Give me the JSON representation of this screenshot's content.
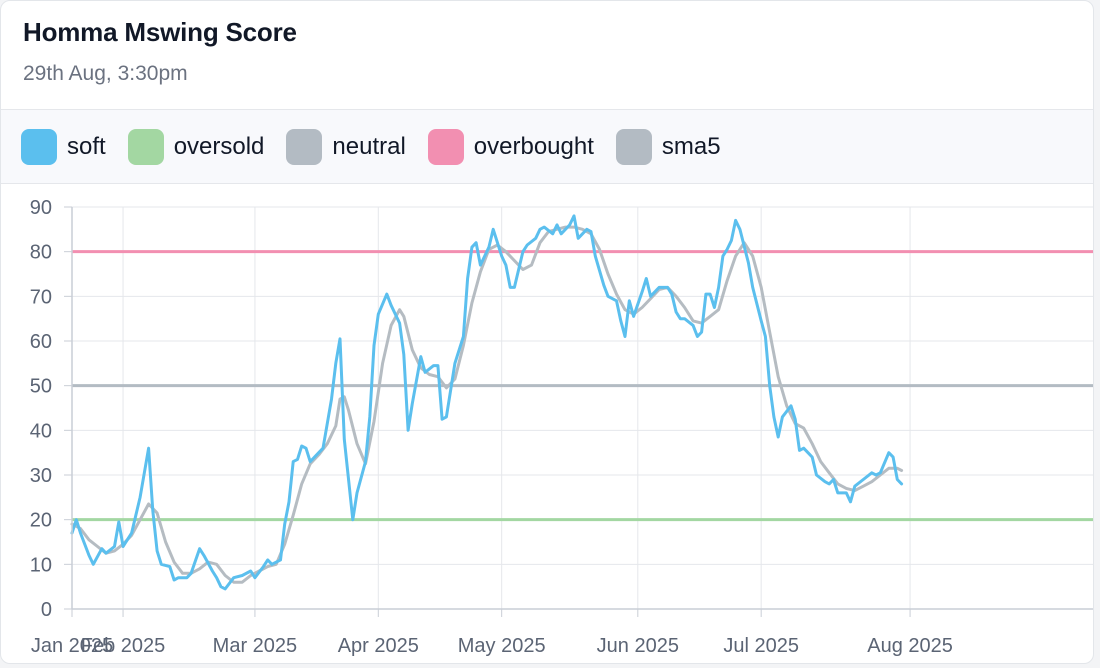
{
  "card": {
    "title": "Homma Mswing Score",
    "subtitle": "29th Aug, 3:30pm"
  },
  "chart_data": {
    "type": "line",
    "title": "Homma Mswing Score",
    "subtitle": "29th Aug, 3:30pm",
    "xlabel": "",
    "ylabel": "",
    "ylim": [
      0,
      90
    ],
    "yticks": [
      0,
      10,
      20,
      30,
      40,
      50,
      60,
      70,
      80,
      90
    ],
    "xlim": [
      "2025-01-01",
      "2025-08-29"
    ],
    "xticks": [
      {
        "date": "2025-01-01",
        "label": "Jan 2025"
      },
      {
        "date": "2025-01-13",
        "label": "Feb 2025"
      },
      {
        "date": "2025-02-13",
        "label": "Mar 2025"
      },
      {
        "date": "2025-03-14",
        "label": "Apr 2025"
      },
      {
        "date": "2025-04-12",
        "label": "May 2025"
      },
      {
        "date": "2025-05-14",
        "label": "Jun 2025"
      },
      {
        "date": "2025-06-12",
        "label": "Jul 2025"
      },
      {
        "date": "2025-07-17",
        "label": "Aug 2025"
      }
    ],
    "grid": true,
    "legend_position": "top",
    "series": [
      {
        "name": "soft",
        "color": "#5bbfee",
        "points": [
          [
            "2025-01-01",
            17.0
          ],
          [
            "2025-01-02",
            20.0
          ],
          [
            "2025-01-03",
            17.0
          ],
          [
            "2025-01-05",
            12.0
          ],
          [
            "2025-01-06",
            10.0
          ],
          [
            "2025-01-08",
            13.5
          ],
          [
            "2025-01-09",
            12.5
          ],
          [
            "2025-01-11",
            14.0
          ],
          [
            "2025-01-12",
            19.5
          ],
          [
            "2025-01-13",
            14.0
          ],
          [
            "2025-01-14",
            15.5
          ],
          [
            "2025-01-15",
            17.0
          ],
          [
            "2025-01-17",
            25.0
          ],
          [
            "2025-01-19",
            36.0
          ],
          [
            "2025-01-20",
            22.0
          ],
          [
            "2025-01-21",
            13.0
          ],
          [
            "2025-01-22",
            10.0
          ],
          [
            "2025-01-24",
            9.5
          ],
          [
            "2025-01-25",
            6.5
          ],
          [
            "2025-01-26",
            7.0
          ],
          [
            "2025-01-28",
            7.0
          ],
          [
            "2025-01-29",
            8.0
          ],
          [
            "2025-01-31",
            13.5
          ],
          [
            "2025-02-01",
            12.0
          ],
          [
            "2025-02-03",
            8.5
          ],
          [
            "2025-02-04",
            7.0
          ],
          [
            "2025-02-05",
            5.0
          ],
          [
            "2025-02-06",
            4.5
          ],
          [
            "2025-02-08",
            7.0
          ],
          [
            "2025-02-10",
            7.5
          ],
          [
            "2025-02-12",
            8.5
          ],
          [
            "2025-02-13",
            7.0
          ],
          [
            "2025-02-15",
            9.5
          ],
          [
            "2025-02-16",
            11.0
          ],
          [
            "2025-02-17",
            10.0
          ],
          [
            "2025-02-19",
            11.0
          ],
          [
            "2025-02-20",
            19.0
          ],
          [
            "2025-02-21",
            24.0
          ],
          [
            "2025-02-22",
            33.0
          ],
          [
            "2025-02-23",
            33.5
          ],
          [
            "2025-02-24",
            36.5
          ],
          [
            "2025-02-25",
            36.0
          ],
          [
            "2025-02-26",
            33.0
          ],
          [
            "2025-02-28",
            35.0
          ],
          [
            "2025-03-01",
            36.0
          ],
          [
            "2025-03-03",
            47.0
          ],
          [
            "2025-03-04",
            55.0
          ],
          [
            "2025-03-05",
            60.5
          ],
          [
            "2025-03-06",
            38.0
          ],
          [
            "2025-03-08",
            20.0
          ],
          [
            "2025-03-09",
            26.0
          ],
          [
            "2025-03-11",
            33.0
          ],
          [
            "2025-03-12",
            43.0
          ],
          [
            "2025-03-13",
            59.0
          ],
          [
            "2025-03-14",
            66.0
          ],
          [
            "2025-03-16",
            70.5
          ],
          [
            "2025-03-17",
            68.0
          ],
          [
            "2025-03-19",
            64.0
          ],
          [
            "2025-03-20",
            57.0
          ],
          [
            "2025-03-21",
            40.0
          ],
          [
            "2025-03-22",
            46.0
          ],
          [
            "2025-03-24",
            56.5
          ],
          [
            "2025-03-25",
            53.0
          ],
          [
            "2025-03-27",
            54.5
          ],
          [
            "2025-03-28",
            54.5
          ],
          [
            "2025-03-29",
            42.5
          ],
          [
            "2025-03-30",
            43.0
          ],
          [
            "2025-04-01",
            55.0
          ],
          [
            "2025-04-03",
            61.0
          ],
          [
            "2025-04-04",
            74.0
          ],
          [
            "2025-04-05",
            81.0
          ],
          [
            "2025-04-06",
            82.0
          ],
          [
            "2025-04-07",
            77.0
          ],
          [
            "2025-04-09",
            81.0
          ],
          [
            "2025-04-10",
            85.0
          ],
          [
            "2025-04-12",
            79.0
          ],
          [
            "2025-04-13",
            77.0
          ],
          [
            "2025-04-14",
            72.0
          ],
          [
            "2025-04-15",
            72.0
          ],
          [
            "2025-04-17",
            80.0
          ],
          [
            "2025-04-18",
            81.5
          ],
          [
            "2025-04-20",
            83.0
          ],
          [
            "2025-04-21",
            85.0
          ],
          [
            "2025-04-22",
            85.5
          ],
          [
            "2025-04-24",
            84.0
          ],
          [
            "2025-04-25",
            86.0
          ],
          [
            "2025-04-26",
            84.0
          ],
          [
            "2025-04-28",
            86.0
          ],
          [
            "2025-04-29",
            88.0
          ],
          [
            "2025-04-30",
            83.0
          ],
          [
            "2025-05-02",
            85.0
          ],
          [
            "2025-05-03",
            84.5
          ],
          [
            "2025-05-04",
            79.0
          ],
          [
            "2025-05-06",
            72.5
          ],
          [
            "2025-05-07",
            70.0
          ],
          [
            "2025-05-09",
            69.0
          ],
          [
            "2025-05-10",
            64.5
          ],
          [
            "2025-05-11",
            61.0
          ],
          [
            "2025-05-12",
            69.0
          ],
          [
            "2025-05-13",
            65.5
          ],
          [
            "2025-05-15",
            71.0
          ],
          [
            "2025-05-16",
            74.0
          ],
          [
            "2025-05-17",
            70.0
          ],
          [
            "2025-05-19",
            72.0
          ],
          [
            "2025-05-21",
            72.0
          ],
          [
            "2025-05-22",
            70.5
          ],
          [
            "2025-05-23",
            66.5
          ],
          [
            "2025-05-24",
            65.0
          ],
          [
            "2025-05-25",
            65.0
          ],
          [
            "2025-05-27",
            63.5
          ],
          [
            "2025-05-28",
            61.0
          ],
          [
            "2025-05-29",
            62.0
          ],
          [
            "2025-05-30",
            70.5
          ],
          [
            "2025-05-31",
            70.5
          ],
          [
            "2025-06-01",
            67.5
          ],
          [
            "2025-06-02",
            72.0
          ],
          [
            "2025-06-03",
            79.0
          ],
          [
            "2025-06-04",
            80.5
          ],
          [
            "2025-06-05",
            82.5
          ],
          [
            "2025-06-06",
            87.0
          ],
          [
            "2025-06-07",
            85.0
          ],
          [
            "2025-06-09",
            77.5
          ],
          [
            "2025-06-10",
            72.0
          ],
          [
            "2025-06-12",
            64.5
          ],
          [
            "2025-06-13",
            61.0
          ],
          [
            "2025-06-14",
            50.0
          ],
          [
            "2025-06-15",
            43.0
          ],
          [
            "2025-06-16",
            38.5
          ],
          [
            "2025-06-17",
            43.0
          ],
          [
            "2025-06-19",
            45.5
          ],
          [
            "2025-06-20",
            42.5
          ],
          [
            "2025-06-21",
            35.5
          ],
          [
            "2025-06-22",
            36.0
          ],
          [
            "2025-06-23",
            35.0
          ],
          [
            "2025-06-24",
            34.0
          ],
          [
            "2025-06-25",
            30.0
          ],
          [
            "2025-06-27",
            28.5
          ],
          [
            "2025-06-28",
            28.0
          ],
          [
            "2025-06-29",
            29.0
          ],
          [
            "2025-06-30",
            26.0
          ],
          [
            "2025-07-02",
            26.0
          ],
          [
            "2025-07-03",
            24.0
          ],
          [
            "2025-07-04",
            27.5
          ],
          [
            "2025-07-06",
            29.0
          ],
          [
            "2025-07-08",
            30.5
          ],
          [
            "2025-07-09",
            30.0
          ],
          [
            "2025-07-10",
            30.5
          ],
          [
            "2025-07-12",
            35.0
          ],
          [
            "2025-07-13",
            34.0
          ],
          [
            "2025-07-14",
            29.0
          ],
          [
            "2025-07-15",
            28.0
          ]
        ]
      },
      {
        "name": "sma5",
        "color": "#b5bcc2",
        "points": [
          [
            "2025-01-01",
            19.0
          ],
          [
            "2025-01-03",
            18.0
          ],
          [
            "2025-01-05",
            15.5
          ],
          [
            "2025-01-07",
            14.0
          ],
          [
            "2025-01-09",
            12.5
          ],
          [
            "2025-01-11",
            13.0
          ],
          [
            "2025-01-13",
            14.5
          ],
          [
            "2025-01-15",
            16.5
          ],
          [
            "2025-01-17",
            20.0
          ],
          [
            "2025-01-19",
            23.5
          ],
          [
            "2025-01-21",
            21.5
          ],
          [
            "2025-01-23",
            15.0
          ],
          [
            "2025-01-25",
            10.5
          ],
          [
            "2025-01-27",
            8.0
          ],
          [
            "2025-01-29",
            8.0
          ],
          [
            "2025-01-31",
            9.0
          ],
          [
            "2025-02-02",
            10.5
          ],
          [
            "2025-02-04",
            10.0
          ],
          [
            "2025-02-06",
            7.5
          ],
          [
            "2025-02-08",
            6.0
          ],
          [
            "2025-02-10",
            6.0
          ],
          [
            "2025-02-12",
            7.5
          ],
          [
            "2025-02-14",
            8.5
          ],
          [
            "2025-02-16",
            9.5
          ],
          [
            "2025-02-18",
            10.0
          ],
          [
            "2025-02-20",
            14.5
          ],
          [
            "2025-02-22",
            21.0
          ],
          [
            "2025-02-24",
            28.0
          ],
          [
            "2025-02-26",
            32.5
          ],
          [
            "2025-02-28",
            34.5
          ],
          [
            "2025-03-02",
            37.0
          ],
          [
            "2025-03-04",
            41.0
          ],
          [
            "2025-03-05",
            47.0
          ],
          [
            "2025-03-06",
            47.5
          ],
          [
            "2025-03-07",
            44.5
          ],
          [
            "2025-03-09",
            37.0
          ],
          [
            "2025-03-11",
            32.5
          ],
          [
            "2025-03-13",
            42.0
          ],
          [
            "2025-03-15",
            55.0
          ],
          [
            "2025-03-17",
            63.5
          ],
          [
            "2025-03-19",
            67.0
          ],
          [
            "2025-03-20",
            65.5
          ],
          [
            "2025-03-22",
            58.0
          ],
          [
            "2025-03-24",
            54.0
          ],
          [
            "2025-03-26",
            52.5
          ],
          [
            "2025-03-28",
            52.0
          ],
          [
            "2025-03-30",
            49.5
          ],
          [
            "2025-04-01",
            51.5
          ],
          [
            "2025-04-03",
            59.0
          ],
          [
            "2025-04-05",
            68.5
          ],
          [
            "2025-04-07",
            75.5
          ],
          [
            "2025-04-09",
            80.5
          ],
          [
            "2025-04-11",
            81.5
          ],
          [
            "2025-04-13",
            80.0
          ],
          [
            "2025-04-15",
            78.0
          ],
          [
            "2025-04-17",
            76.0
          ],
          [
            "2025-04-19",
            77.0
          ],
          [
            "2025-04-21",
            82.0
          ],
          [
            "2025-04-23",
            84.5
          ],
          [
            "2025-04-25",
            85.0
          ],
          [
            "2025-04-27",
            85.5
          ],
          [
            "2025-04-29",
            85.5
          ],
          [
            "2025-05-01",
            85.0
          ],
          [
            "2025-05-03",
            84.0
          ],
          [
            "2025-05-05",
            80.5
          ],
          [
            "2025-05-07",
            75.0
          ],
          [
            "2025-05-09",
            70.5
          ],
          [
            "2025-05-11",
            67.0
          ],
          [
            "2025-05-13",
            66.0
          ],
          [
            "2025-05-15",
            67.5
          ],
          [
            "2025-05-17",
            69.5
          ],
          [
            "2025-05-19",
            71.5
          ],
          [
            "2025-05-21",
            72.0
          ],
          [
            "2025-05-23",
            70.0
          ],
          [
            "2025-05-25",
            67.5
          ],
          [
            "2025-05-27",
            64.5
          ],
          [
            "2025-05-29",
            64.0
          ],
          [
            "2025-05-31",
            65.5
          ],
          [
            "2025-06-02",
            67.0
          ],
          [
            "2025-06-04",
            73.5
          ],
          [
            "2025-06-06",
            79.0
          ],
          [
            "2025-06-08",
            82.0
          ],
          [
            "2025-06-10",
            79.0
          ],
          [
            "2025-06-12",
            72.0
          ],
          [
            "2025-06-14",
            62.0
          ],
          [
            "2025-06-16",
            52.0
          ],
          [
            "2025-06-18",
            45.5
          ],
          [
            "2025-06-20",
            41.5
          ],
          [
            "2025-06-22",
            40.5
          ],
          [
            "2025-06-24",
            37.0
          ],
          [
            "2025-06-26",
            33.0
          ],
          [
            "2025-06-28",
            30.5
          ],
          [
            "2025-06-30",
            28.0
          ],
          [
            "2025-07-02",
            27.0
          ],
          [
            "2025-07-04",
            26.5
          ],
          [
            "2025-07-06",
            27.5
          ],
          [
            "2025-07-08",
            28.5
          ],
          [
            "2025-07-10",
            30.0
          ],
          [
            "2025-07-12",
            31.5
          ],
          [
            "2025-07-14",
            31.5
          ],
          [
            "2025-07-15",
            31.0
          ]
        ]
      }
    ],
    "reference_lines": [
      {
        "name": "oversold",
        "value": 20,
        "color": "#a3d7a2"
      },
      {
        "name": "neutral",
        "value": 50,
        "color": "#b3bbc3"
      },
      {
        "name": "overbought",
        "value": 80,
        "color": "#f28fb1"
      }
    ],
    "legend": [
      {
        "label": "soft",
        "color": "#5bbfee"
      },
      {
        "label": "oversold",
        "color": "#a3d7a2"
      },
      {
        "label": "neutral",
        "color": "#b3bbc3"
      },
      {
        "label": "overbought",
        "color": "#f28fb1"
      },
      {
        "label": "sma5",
        "color": "#b3bbc3"
      }
    ]
  }
}
